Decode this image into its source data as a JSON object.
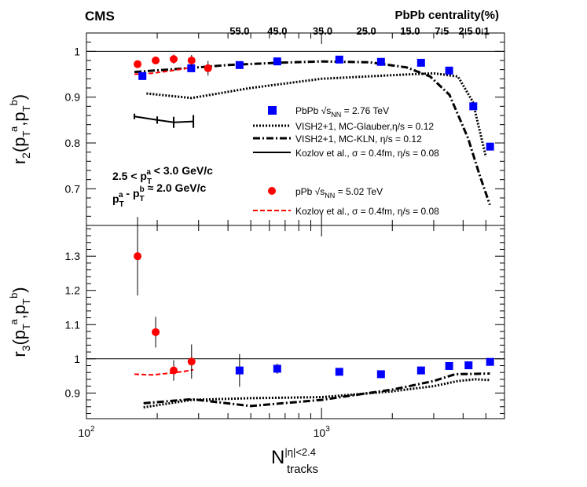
{
  "chart_data": {
    "type": "scatter",
    "experiment_label": "CMS",
    "top_axis": {
      "title": "PbPb centrality(%)",
      "ticks": [
        {
          "label": "55.0",
          "ntracks": 448
        },
        {
          "label": "45.0",
          "ntracks": 648
        },
        {
          "label": "35.0",
          "ntracks": 1010
        },
        {
          "label": "25.0",
          "ntracks": 1550
        },
        {
          "label": "15.0",
          "ntracks": 2380
        },
        {
          "label": "7.5",
          "ntracks": 3250
        },
        {
          "label": "2.5",
          "ntracks": 4100
        },
        {
          "label": "0.1",
          "ntracks": 4830
        }
      ]
    },
    "x_axis": {
      "title": "N",
      "title_sup": "|η|<2.4",
      "title_sub": "tracks",
      "scale": "log",
      "range": [
        100,
        6000
      ],
      "labeled_ticks": [
        {
          "value": 100,
          "base": "10",
          "exp": "2"
        },
        {
          "value": 1000,
          "base": "10",
          "exp": "3"
        }
      ]
    },
    "panels": [
      {
        "name": "r2",
        "ylabel": "r₂(pᵀᵃ,pᵀᵇ)",
        "ylabel_parts": {
          "main": "r",
          "sub": "2",
          "args": [
            "a",
            "b"
          ]
        },
        "ylim": [
          0.62,
          1.04
        ],
        "yticks": [
          0.7,
          0.8,
          0.9,
          1.0
        ],
        "ytick_labels": [
          "0.7",
          "0.8",
          "0.9",
          "1"
        ],
        "reference_line": 1.0,
        "annotations": [
          {
            "text": "2.5 < p_T^a < 3.0 GeV/c"
          },
          {
            "text": "p_T^a - p_T^b ≈ 2.0 GeV/c"
          }
        ],
        "legend": [
          {
            "label": "PbPb √s_NN = 2.76 TeV",
            "marker": "square",
            "color": "#0000ff"
          },
          {
            "label": "VISH2+1, MC-Glauber,η/s = 0.12",
            "style": "dotted",
            "color": "#000000"
          },
          {
            "label": "VISH2+1, MC-KLN, η/s = 0.12",
            "style": "dashdot",
            "color": "#000000"
          },
          {
            "label": "Kozlov et al., σ = 0.4fm, η/s = 0.08",
            "style": "solid",
            "color": "#000000"
          },
          {
            "label": "pPb √s_NN = 5.02 TeV",
            "marker": "circle",
            "color": "#ff0000"
          },
          {
            "label": "Kozlov et al., σ = 0.4fm, η/s = 0.08",
            "style": "dashed",
            "color": "#ff0000"
          }
        ],
        "series": [
          {
            "name": "PbPb 2.76 TeV",
            "marker": "square",
            "color": "#0000ff",
            "x": [
              173,
              279,
              448,
              648,
              1190,
              1790,
              2650,
              3490,
              4420,
              5210
            ],
            "y": [
              0.946,
              0.963,
              0.97,
              0.978,
              0.982,
              0.977,
              0.975,
              0.958,
              0.88,
              0.792
            ],
            "err": [
              0.006,
              0.004,
              0.003,
              0.002,
              0.002,
              0.002,
              0.002,
              0.003,
              0.003,
              0.004
            ]
          },
          {
            "name": "pPb 5.02 TeV",
            "marker": "circle",
            "color": "#ff0000",
            "x": [
              165,
              197,
              235,
              280,
              329
            ],
            "y": [
              0.972,
              0.98,
              0.983,
              0.98,
              0.963
            ],
            "err": [
              0.006,
              0.008,
              0.01,
              0.012,
              0.016
            ]
          },
          {
            "name": "VISH2+1 MC-Glauber",
            "style": "dotted",
            "color": "#000000",
            "x": [
              180,
              280,
              500,
              1000,
              2000,
              3000,
              3800,
              4400,
              5000
            ],
            "y": [
              0.908,
              0.898,
              0.92,
              0.94,
              0.948,
              0.952,
              0.945,
              0.89,
              0.77
            ]
          },
          {
            "name": "VISH2+1 MC-KLN",
            "style": "dashdot",
            "color": "#000000",
            "x": [
              160,
              250,
              400,
              650,
              1000,
              1600,
              2300,
              2900,
              3500,
              4200,
              4700,
              5200
            ],
            "y": [
              0.955,
              0.962,
              0.97,
              0.975,
              0.978,
              0.976,
              0.965,
              0.945,
              0.905,
              0.81,
              0.73,
              0.665
            ]
          },
          {
            "name": "Kozlov PbPb",
            "style": "solid",
            "color": "#000000",
            "x": [
              160,
              200,
              235,
              285
            ],
            "y": [
              0.858,
              0.85,
              0.845,
              0.847
            ],
            "err": [
              0.006,
              0.008,
              0.012,
              0.014
            ]
          },
          {
            "name": "Kozlov pPb",
            "style": "dashed",
            "color": "#ff0000",
            "x": [
              160,
              190,
              225,
              260,
              285
            ],
            "y": [
              0.95,
              0.952,
              0.957,
              0.962,
              0.966
            ]
          }
        ]
      },
      {
        "name": "r3",
        "ylabel": "r₃(pᵀᵃ,pᵀᵇ)",
        "ylabel_parts": {
          "main": "r",
          "sub": "3",
          "args": [
            "a",
            "b"
          ]
        },
        "ylim": [
          0.825,
          1.39
        ],
        "yticks": [
          0.9,
          1.0,
          1.1,
          1.2,
          1.3
        ],
        "ytick_labels": [
          "0.9",
          "1",
          "1.1",
          "1.2",
          "1.3"
        ],
        "reference_line": 1.0,
        "series": [
          {
            "name": "PbPb 2.76 TeV",
            "marker": "square",
            "color": "#0000ff",
            "x": [
              448,
              648,
              1190,
              1790,
              2650,
              3490,
              4220,
              5210
            ],
            "y": [
              0.966,
              0.971,
              0.962,
              0.955,
              0.966,
              0.979,
              0.981,
              0.991
            ],
            "err": [
              0.048,
              0.015,
              0.008,
              0.006,
              0.006,
              0.006,
              0.005,
              0.006
            ]
          },
          {
            "name": "pPb 5.02 TeV",
            "marker": "circle",
            "color": "#ff0000",
            "x": [
              165,
              197,
              235,
              280
            ],
            "y": [
              1.3,
              1.078,
              0.966,
              0.992
            ],
            "err": [
              0.115,
              0.045,
              0.03,
              0.05
            ]
          },
          {
            "name": "VISH2+1 MC-Glauber",
            "style": "dotted",
            "color": "#000000",
            "x": [
              175,
              280,
              500,
              1000,
              2000,
              3000,
              3800,
              4500,
              5200
            ],
            "y": [
              0.858,
              0.88,
              0.885,
              0.888,
              0.905,
              0.92,
              0.935,
              0.94,
              0.938
            ]
          },
          {
            "name": "VISH2+1 MC-KLN",
            "style": "dashdot",
            "color": "#000000",
            "x": [
              175,
              280,
              500,
              1000,
              2000,
              3000,
              3700,
              4500,
              5200
            ],
            "y": [
              0.87,
              0.882,
              0.862,
              0.88,
              0.91,
              0.935,
              0.955,
              0.956,
              0.957
            ]
          },
          {
            "name": "Kozlov pPb",
            "style": "dashed",
            "color": "#ff0000",
            "x": [
              160,
              190,
              225,
              260,
              285
            ],
            "y": [
              0.955,
              0.953,
              0.958,
              0.963,
              0.968
            ]
          }
        ]
      }
    ]
  }
}
